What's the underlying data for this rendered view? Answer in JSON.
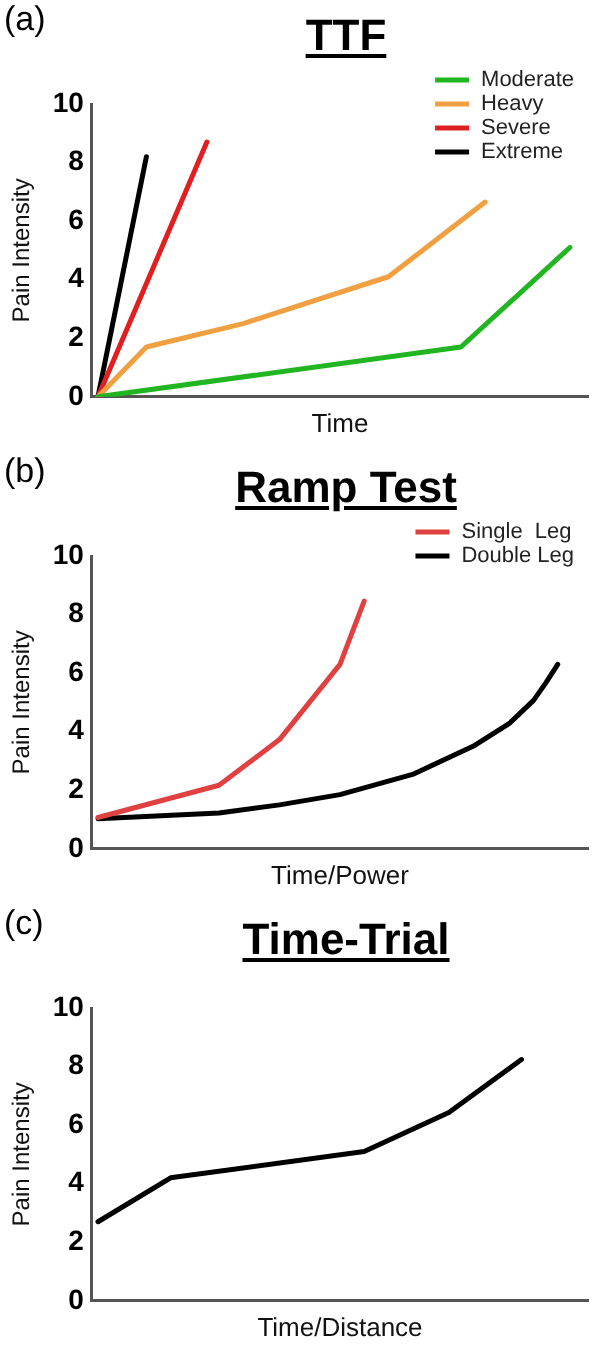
{
  "chart_data": [
    {
      "type": "line",
      "title": "TTF",
      "xlabel": "Time",
      "ylabel": "Pain Intensity",
      "annotations": [
        "(a)"
      ],
      "categories": [
        null,
        null,
        null,
        null,
        null,
        null,
        null,
        null,
        null,
        null,
        null,
        null,
        null,
        null,
        null,
        null,
        null,
        null,
        null,
        null,
        null,
        null,
        null,
        null,
        null,
        null,
        null,
        null,
        null,
        null,
        null,
        null,
        null,
        null,
        null,
        null,
        null,
        null,
        null,
        null,
        null
      ],
      "ylim": [
        0,
        10
      ],
      "yticks": [
        0,
        2,
        4,
        6,
        8,
        10
      ],
      "tick_labels": "y",
      "grid": false,
      "legend": "top right",
      "marker": "none",
      "line_style": "solid",
      "series": [
        {
          "name": "Moderate",
          "color": "#22b522",
          "values": [
            0,
            null,
            null,
            null,
            null,
            null,
            null,
            null,
            null,
            null,
            null,
            null,
            null,
            null,
            null,
            null,
            null,
            null,
            null,
            null,
            null,
            null,
            null,
            null,
            null,
            null,
            null,
            null,
            null,
            null,
            1.7,
            null,
            null,
            null,
            null,
            null,
            null,
            null,
            null,
            5.1,
            null
          ]
        },
        {
          "name": "Heavy",
          "color": "#f0a040",
          "values": [
            0,
            null,
            null,
            null,
            1.7,
            null,
            null,
            null,
            null,
            null,
            null,
            null,
            2.5,
            null,
            null,
            null,
            null,
            null,
            null,
            null,
            null,
            null,
            null,
            null,
            4.1,
            null,
            null,
            null,
            null,
            null,
            null,
            null,
            6.65,
            null,
            null,
            null,
            null,
            null,
            null,
            null,
            null
          ]
        },
        {
          "name": "Severe",
          "color": "#e02020",
          "values": [
            0,
            null,
            null,
            null,
            null,
            null,
            null,
            null,
            null,
            8.7,
            null,
            null,
            null,
            null,
            null,
            null,
            null,
            null,
            null,
            null,
            null,
            null,
            null,
            null,
            null,
            null,
            null,
            null,
            null,
            null,
            null,
            null,
            null,
            null,
            null,
            null,
            null,
            null,
            null,
            null,
            null
          ]
        },
        {
          "name": "Extreme",
          "color": "#000000",
          "values": [
            0,
            null,
            null,
            null,
            8.2,
            null,
            null,
            null,
            null,
            null,
            null,
            null,
            null,
            null,
            null,
            null,
            null,
            null,
            null,
            null,
            null,
            null,
            null,
            null,
            null,
            null,
            null,
            null,
            null,
            null,
            null,
            null,
            null,
            null,
            null,
            null,
            null,
            null,
            null,
            null,
            null
          ]
        }
      ]
    },
    {
      "type": "line",
      "title": "Ramp Test",
      "xlabel": "Time/Power",
      "ylabel": "Pain Intensity",
      "annotations": [
        "(b)"
      ],
      "categories": [
        null,
        null,
        null,
        null,
        null,
        null,
        null,
        null,
        null,
        null,
        null,
        null,
        null,
        null,
        null,
        null,
        null,
        null,
        null,
        null,
        null,
        null,
        null,
        null,
        null,
        null,
        null,
        null,
        null,
        null,
        null,
        null,
        null,
        null,
        null,
        null,
        null,
        null,
        null,
        null,
        null
      ],
      "ylim": [
        0,
        10
      ],
      "yticks": [
        0,
        2,
        4,
        6,
        8,
        10
      ],
      "tick_labels": "y",
      "grid": false,
      "legend": "top right",
      "marker": "none",
      "line_style": "solid",
      "series": [
        {
          "name": "Single  Leg",
          "color": "#e04040",
          "values": [
            1.07,
            null,
            null,
            null,
            null,
            null,
            null,
            null,
            null,
            null,
            2.17,
            null,
            null,
            null,
            null,
            3.73,
            null,
            null,
            null,
            null,
            6.3,
            null,
            8.46,
            null,
            null,
            null,
            null,
            null,
            null,
            null,
            null,
            null,
            null,
            null,
            null,
            null,
            null,
            null,
            null,
            null,
            null
          ]
        },
        {
          "name": "Double Leg",
          "color": "#000000",
          "values": [
            1.03,
            null,
            null,
            null,
            null,
            null,
            null,
            null,
            null,
            null,
            1.22,
            null,
            null,
            null,
            null,
            1.5,
            null,
            null,
            null,
            null,
            1.85,
            null,
            null,
            null,
            null,
            null,
            2.54,
            null,
            null,
            null,
            null,
            3.5,
            null,
            null,
            4.28,
            null,
            5.07,
            5.66,
            6.3,
            null,
            null
          ]
        }
      ]
    },
    {
      "type": "line",
      "title": "Time-Trial",
      "xlabel": "Time/Distance",
      "ylabel": "Pain Intensity",
      "annotations": [
        "(c)"
      ],
      "categories": [
        null,
        null,
        null,
        null,
        null,
        null,
        null,
        null,
        null,
        null,
        null,
        null,
        null,
        null,
        null,
        null,
        null,
        null,
        null,
        null,
        null,
        null,
        null,
        null,
        null,
        null,
        null,
        null,
        null,
        null,
        null,
        null,
        null,
        null,
        null,
        null,
        null,
        null,
        null,
        null,
        null
      ],
      "ylim": [
        0,
        10
      ],
      "yticks": [
        0,
        2,
        4,
        6,
        8,
        10
      ],
      "tick_labels": "y",
      "grid": false,
      "marker": "none",
      "line_style": "solid",
      "series": [
        {
          "color": "#000000",
          "values": [
            2.7,
            null,
            null,
            null,
            null,
            null,
            4.2,
            null,
            null,
            null,
            null,
            null,
            null,
            null,
            null,
            null,
            null,
            null,
            null,
            null,
            null,
            null,
            5.1,
            null,
            null,
            null,
            null,
            null,
            null,
            6.43,
            null,
            null,
            null,
            null,
            null,
            8.24,
            null,
            null,
            null,
            null,
            null
          ]
        }
      ]
    }
  ]
}
